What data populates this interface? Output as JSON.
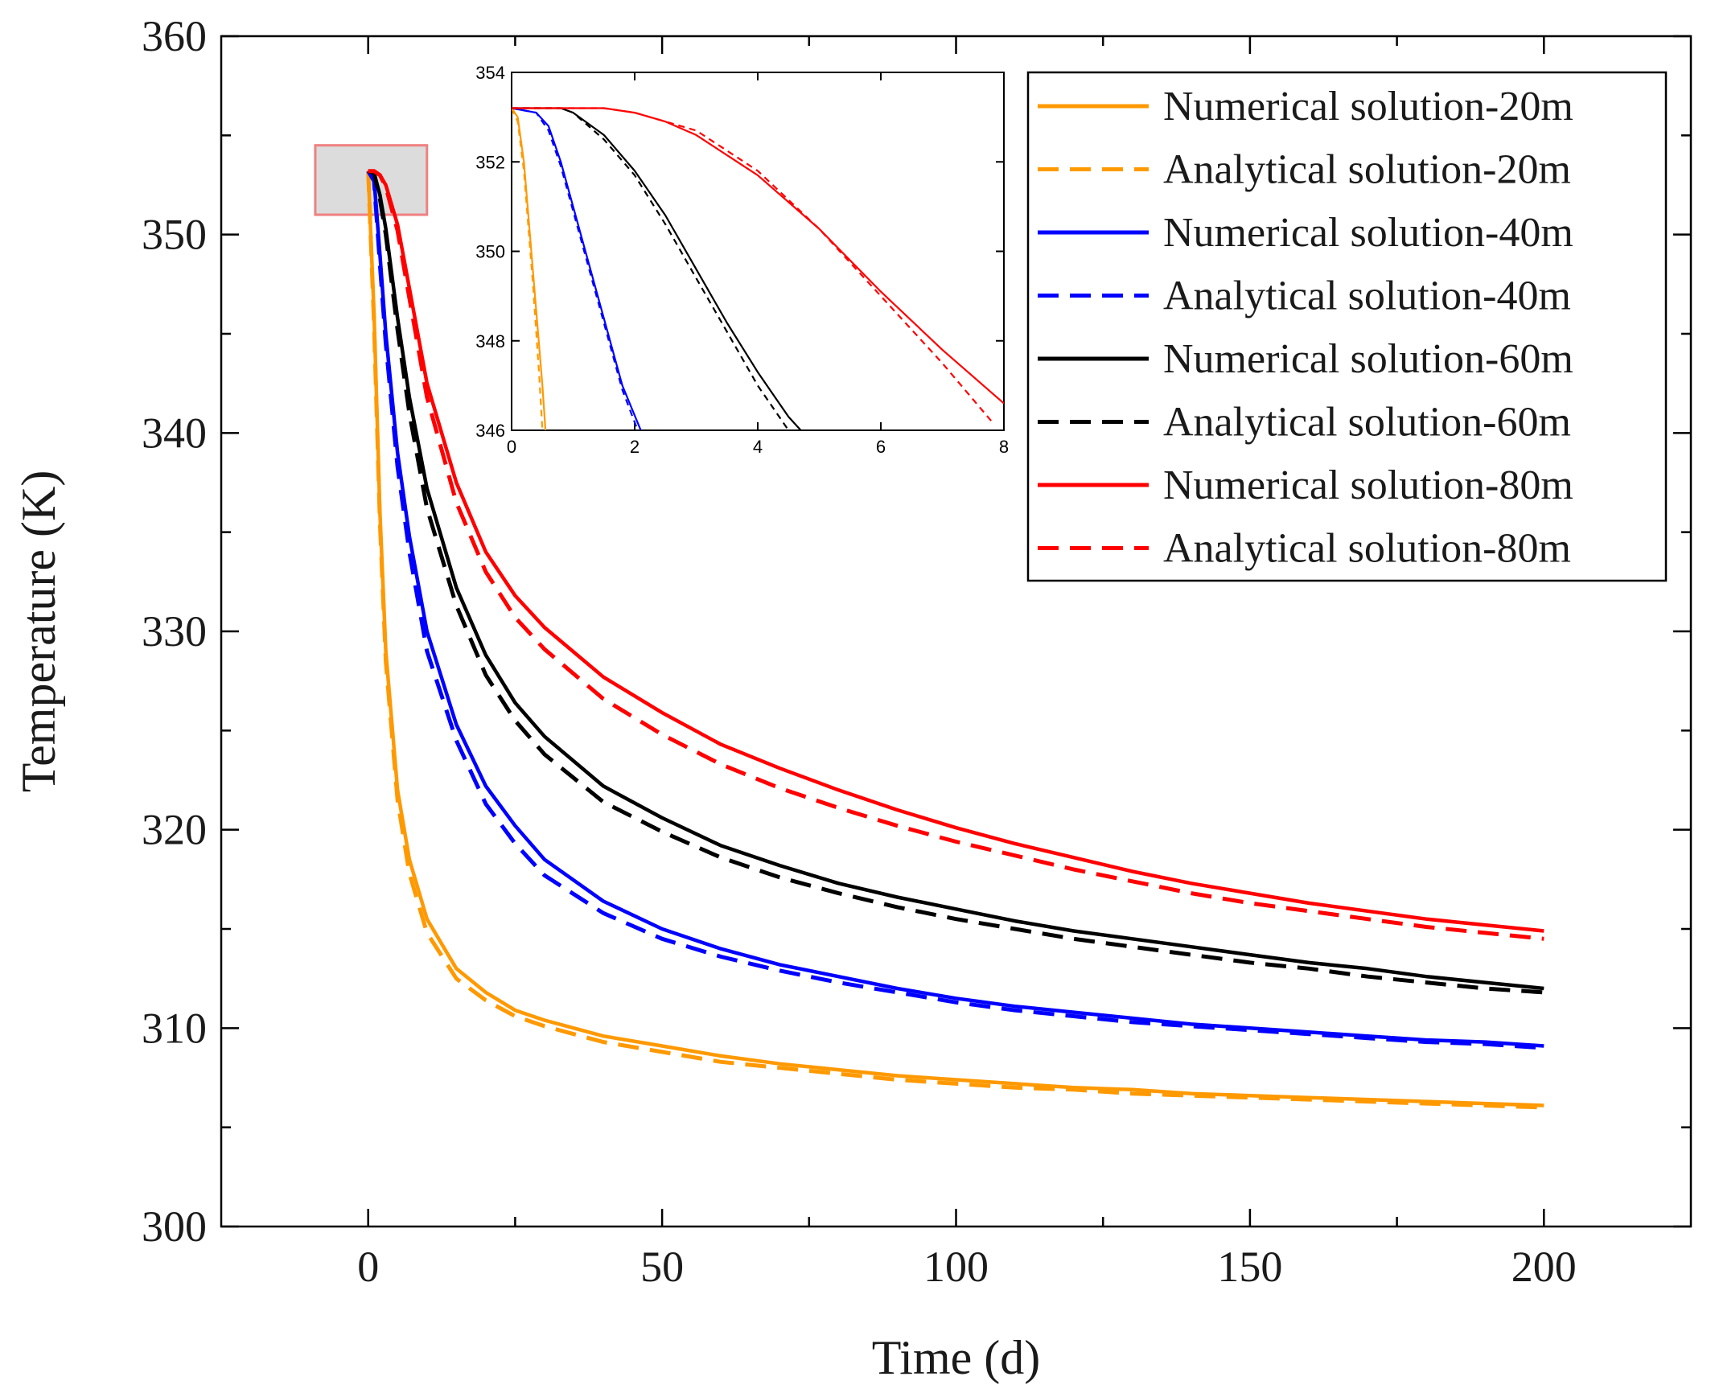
{
  "chart_data": [
    {
      "type": "line",
      "title": "",
      "xlabel": "Time (d)",
      "ylabel": "Temperature (K)",
      "xlim": [
        -25,
        225
      ],
      "ylim": [
        300,
        360
      ],
      "xticks": [
        0,
        50,
        100,
        150,
        200
      ],
      "yticks": [
        300,
        310,
        320,
        330,
        340,
        350,
        360
      ],
      "x": [
        0,
        1,
        2,
        3,
        5,
        7,
        10,
        15,
        20,
        25,
        30,
        40,
        50,
        60,
        70,
        80,
        90,
        100,
        110,
        120,
        130,
        140,
        150,
        160,
        170,
        180,
        190,
        200
      ],
      "series": [
        {
          "name": "Numerical solution-20m",
          "color": "#FF9900",
          "dash": "solid",
          "values": [
            353.2,
            346,
            336,
            329,
            322,
            318.5,
            315.5,
            313,
            311.8,
            310.9,
            310.4,
            309.6,
            309.1,
            308.6,
            308.2,
            307.9,
            307.6,
            307.4,
            307.2,
            307.0,
            306.9,
            306.7,
            306.6,
            306.5,
            306.4,
            306.3,
            306.2,
            306.1
          ]
        },
        {
          "name": "Analytical solution-20m",
          "color": "#FF9900",
          "dash": "dashed",
          "values": [
            353.2,
            345.5,
            335.5,
            328.5,
            321.5,
            317.8,
            314.8,
            312.5,
            311.4,
            310.6,
            310.1,
            309.3,
            308.8,
            308.3,
            308.0,
            307.7,
            307.4,
            307.2,
            307.0,
            306.9,
            306.7,
            306.6,
            306.5,
            306.4,
            306.3,
            306.2,
            306.1,
            306.0
          ]
        },
        {
          "name": "Numerical solution-40m",
          "color": "#0000FF",
          "dash": "solid",
          "values": [
            353.2,
            352.8,
            349,
            345,
            339,
            334.8,
            330,
            325.3,
            322.2,
            320.2,
            318.5,
            316.4,
            315.0,
            314.0,
            313.2,
            312.6,
            312.0,
            311.5,
            311.1,
            310.8,
            310.5,
            310.2,
            310.0,
            309.8,
            309.6,
            309.4,
            309.3,
            309.1
          ]
        },
        {
          "name": "Analytical solution-40m",
          "color": "#0000FF",
          "dash": "dashed",
          "values": [
            353.2,
            352.7,
            348.5,
            344.5,
            338.3,
            334,
            329,
            324.5,
            321.3,
            319.3,
            317.7,
            315.8,
            314.5,
            313.6,
            312.9,
            312.3,
            311.8,
            311.3,
            310.9,
            310.6,
            310.3,
            310.1,
            309.9,
            309.7,
            309.5,
            309.3,
            309.2,
            309.0
          ]
        },
        {
          "name": "Numerical solution-60m",
          "color": "#000000",
          "dash": "solid",
          "values": [
            353.2,
            353.1,
            352,
            350.3,
            345.8,
            341.8,
            337.2,
            332.2,
            328.8,
            326.4,
            324.7,
            322.2,
            320.6,
            319.2,
            318.2,
            317.3,
            316.6,
            316.0,
            315.4,
            314.9,
            314.5,
            314.1,
            313.7,
            313.3,
            313.0,
            312.6,
            312.3,
            312.0
          ]
        },
        {
          "name": "Analytical solution-60m",
          "color": "#000000",
          "dash": "dashed",
          "values": [
            353.2,
            353.1,
            351.8,
            350,
            345.2,
            341,
            336.2,
            331.3,
            327.8,
            325.5,
            323.8,
            321.4,
            319.9,
            318.6,
            317.6,
            316.8,
            316.1,
            315.5,
            315.0,
            314.5,
            314.1,
            313.7,
            313.3,
            313.0,
            312.6,
            312.3,
            312.0,
            311.8
          ]
        },
        {
          "name": "Numerical solution-80m",
          "color": "#FF0000",
          "dash": "solid",
          "values": [
            353.2,
            353.2,
            353.0,
            352.5,
            350.5,
            347.3,
            342.5,
            337.5,
            334.0,
            331.8,
            330.2,
            327.7,
            325.9,
            324.3,
            323.1,
            322.0,
            321.0,
            320.1,
            319.3,
            318.6,
            317.9,
            317.3,
            316.8,
            316.3,
            315.9,
            315.5,
            315.2,
            314.9
          ]
        },
        {
          "name": "Analytical solution-80m",
          "color": "#FF0000",
          "dash": "dashed",
          "values": [
            353.2,
            353.2,
            353.0,
            352.4,
            350.2,
            346.8,
            341.8,
            336.5,
            333.0,
            330.7,
            329.1,
            326.6,
            324.8,
            323.3,
            322.1,
            321.1,
            320.2,
            319.4,
            318.7,
            318.0,
            317.4,
            316.8,
            316.3,
            315.9,
            315.5,
            315.1,
            314.8,
            314.5
          ]
        }
      ],
      "highlight_box": {
        "x_range": [
          -9,
          10
        ],
        "y_range": [
          351,
          354.5
        ]
      },
      "legend": {
        "placement": "top-right"
      }
    },
    {
      "type": "line",
      "title": "inset",
      "xlim": [
        0,
        8
      ],
      "ylim": [
        346,
        354
      ],
      "xticks": [
        0,
        2,
        4,
        6,
        8
      ],
      "yticks": [
        346,
        348,
        350,
        352,
        354
      ],
      "series": [
        {
          "name": "Numerical solution-20m",
          "x": [
            0,
            0.1,
            0.2,
            0.35,
            0.5,
            0.55
          ],
          "values": [
            353.2,
            353.0,
            352,
            349.5,
            347,
            346
          ]
        },
        {
          "name": "Analytical solution-20m",
          "x": [
            0,
            0.1,
            0.2,
            0.35,
            0.45,
            0.5
          ],
          "values": [
            353.2,
            352.9,
            351.8,
            349.2,
            347.2,
            346
          ]
        },
        {
          "name": "Numerical solution-40m",
          "x": [
            0,
            0.4,
            0.6,
            0.8,
            1.0,
            1.4,
            1.8,
            2.1
          ],
          "values": [
            353.2,
            353.1,
            352.8,
            352,
            351,
            349,
            347,
            346
          ]
        },
        {
          "name": "Analytical solution-40m",
          "x": [
            0,
            0.4,
            0.6,
            0.8,
            1.0,
            1.4,
            1.8,
            2.05
          ],
          "values": [
            353.2,
            353.1,
            352.7,
            351.9,
            350.9,
            348.9,
            346.9,
            346
          ]
        },
        {
          "name": "Numerical solution-60m",
          "x": [
            0,
            0.8,
            1.0,
            1.5,
            2.0,
            2.5,
            3.0,
            3.5,
            4.0,
            4.5,
            4.7
          ],
          "values": [
            353.2,
            353.2,
            353.1,
            352.6,
            351.8,
            350.8,
            349.6,
            348.4,
            347.3,
            346.3,
            346
          ]
        },
        {
          "name": "Analytical solution-60m",
          "x": [
            0,
            0.8,
            1.0,
            1.5,
            2.0,
            2.5,
            3.0,
            3.5,
            4.0,
            4.4,
            4.5
          ],
          "values": [
            353.2,
            353.2,
            353.1,
            352.5,
            351.7,
            350.6,
            349.4,
            348.2,
            347.0,
            346.2,
            346
          ]
        },
        {
          "name": "Numerical solution-80m",
          "x": [
            0,
            1,
            1.5,
            2,
            2.5,
            3,
            4,
            5,
            6,
            7,
            8
          ],
          "values": [
            353.2,
            353.2,
            353.2,
            353.1,
            352.9,
            352.6,
            351.7,
            350.5,
            349.1,
            347.8,
            346.6
          ]
        },
        {
          "name": "Analytical solution-80m",
          "x": [
            0,
            1,
            1.5,
            2,
            2.5,
            3,
            4,
            5,
            6,
            7,
            7.8
          ],
          "values": [
            353.2,
            353.2,
            353.2,
            353.1,
            352.9,
            352.7,
            351.8,
            350.5,
            349.0,
            347.5,
            346.2
          ]
        }
      ]
    }
  ]
}
